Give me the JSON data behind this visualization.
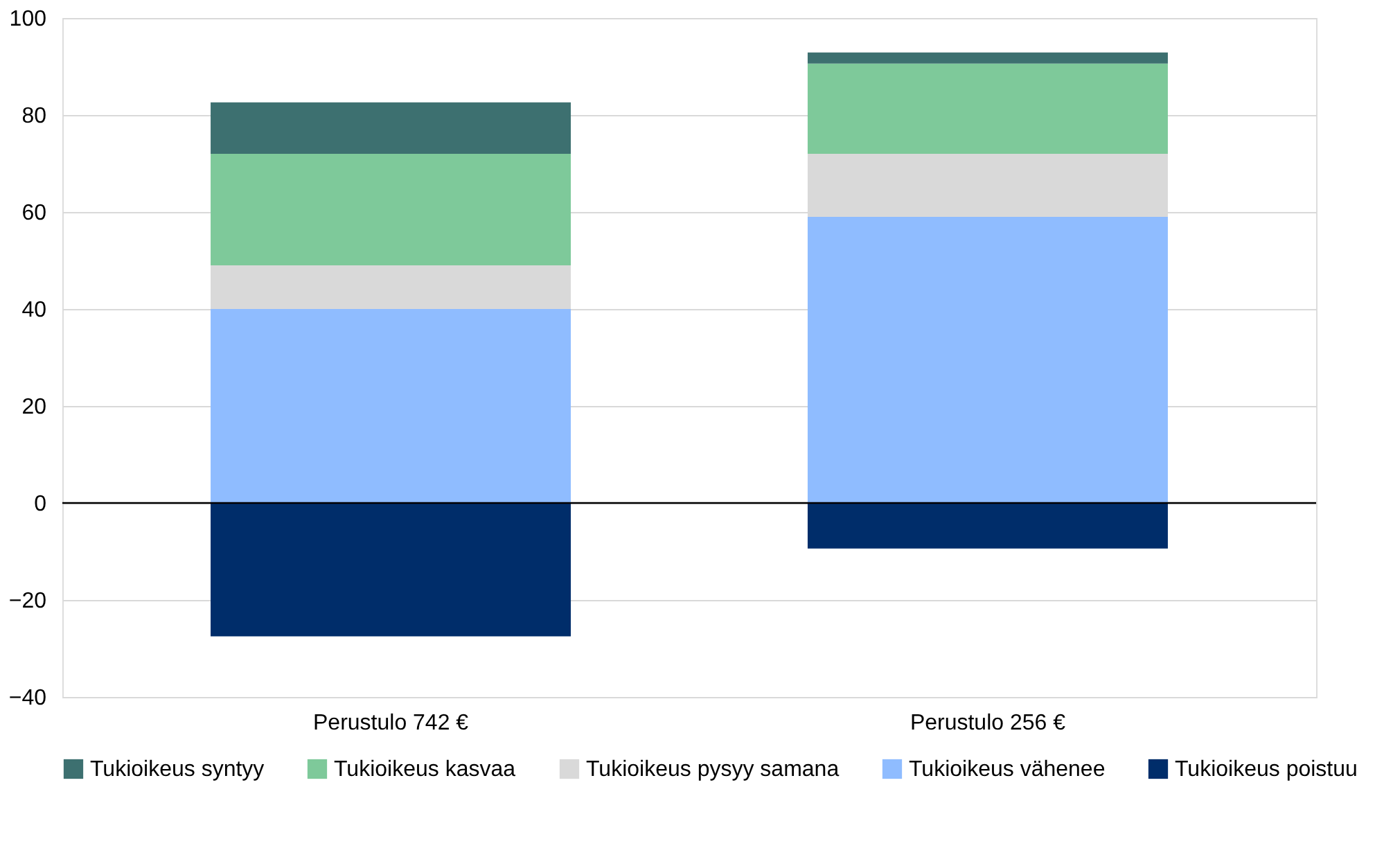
{
  "chart_data": {
    "type": "bar",
    "stacked": true,
    "categories": [
      "Perustulo 742 €",
      "Perustulo 256 €"
    ],
    "series": [
      {
        "name": "Tukioikeus poistuu",
        "color": "#002d6a",
        "values": [
          -27.5,
          -9.4
        ]
      },
      {
        "name": "Tukioikeus vähenee",
        "color": "#8fbcff",
        "values": [
          40,
          59
        ]
      },
      {
        "name": "Tukioikeus pysyy samana",
        "color": "#d9d9d9",
        "values": [
          9,
          13
        ]
      },
      {
        "name": "Tukioikeus kasvaa",
        "color": "#7ec99a",
        "values": [
          23,
          18.6
        ]
      },
      {
        "name": "Tukioikeus syntyy",
        "color": "#3d7070",
        "values": [
          10.6,
          2.3
        ]
      }
    ],
    "ylim": [
      -40,
      100
    ],
    "yticks": [
      -40,
      -20,
      0,
      20,
      40,
      60,
      80,
      100
    ],
    "grid": "y",
    "legend": "bottom",
    "ref_lines": [
      {
        "axis": "y",
        "value": 0,
        "color": "#000000"
      }
    ]
  }
}
